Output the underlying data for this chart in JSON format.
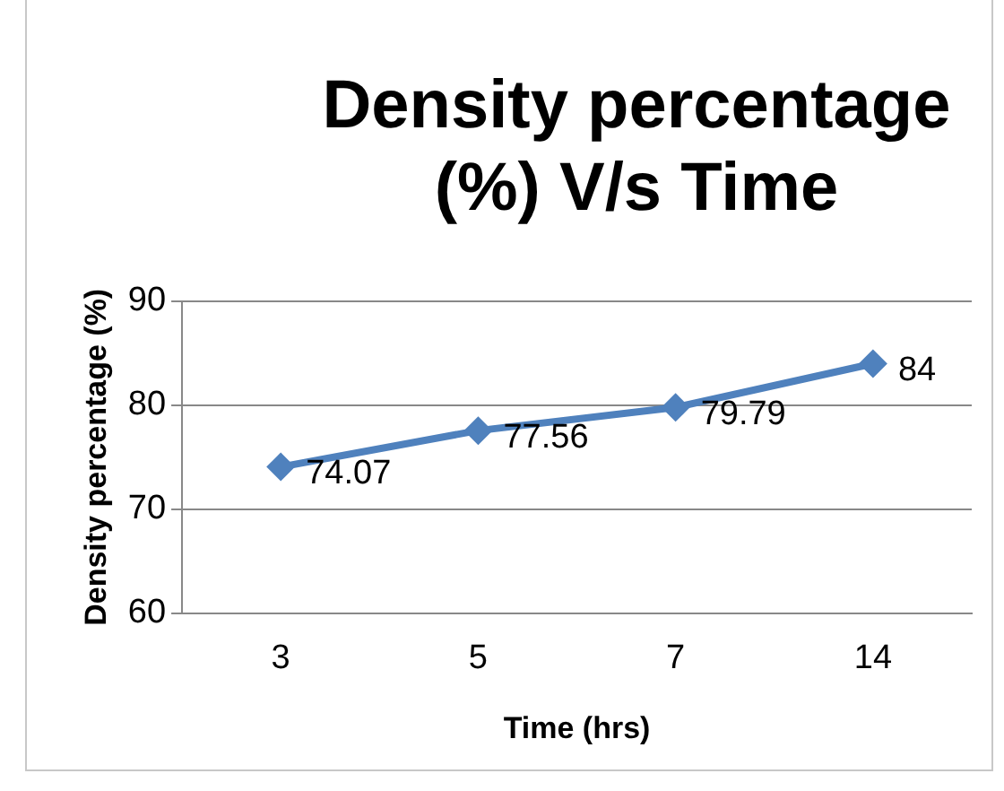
{
  "chart_data": {
    "type": "line",
    "title": "Density percentage (%) V/s Time",
    "xlabel": "Time (hrs)",
    "ylabel": "Density percentage (%)",
    "categories": [
      "3",
      "5",
      "7",
      "14"
    ],
    "series": [
      {
        "color": "#4f81bd",
        "values": [
          74.07,
          77.56,
          79.79,
          84
        ]
      }
    ],
    "ylim": [
      60,
      90
    ],
    "yticks": [
      60,
      70,
      80,
      90
    ],
    "grid": "y",
    "legend": false,
    "marker": "diamond",
    "data_labels": true
  }
}
